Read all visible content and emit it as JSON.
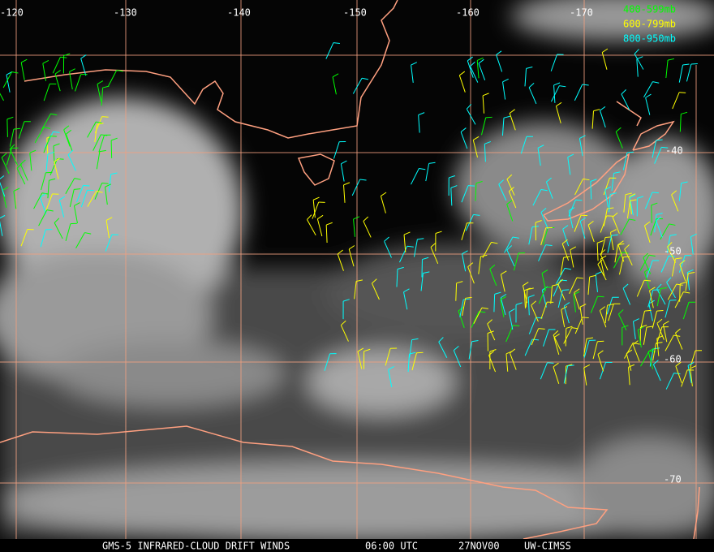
{
  "map": {
    "lon_labels": [
      "-120",
      "-130",
      "-140",
      "-150",
      "-160",
      "-170"
    ],
    "lat_labels": [
      "-40",
      "-50",
      "-60",
      "-70"
    ],
    "legend": [
      {
        "label": "400-599mb",
        "color": "#00ff00"
      },
      {
        "label": "600-799mb",
        "color": "#ffff00"
      },
      {
        "label": "800-950mb",
        "color": "#00ffff"
      }
    ],
    "footer": [
      "GMS-5 INFRARED-CLOUD DRIFT WINDS",
      "06:00 UTC",
      "27NOV00",
      "UW-CIMSS"
    ]
  }
}
